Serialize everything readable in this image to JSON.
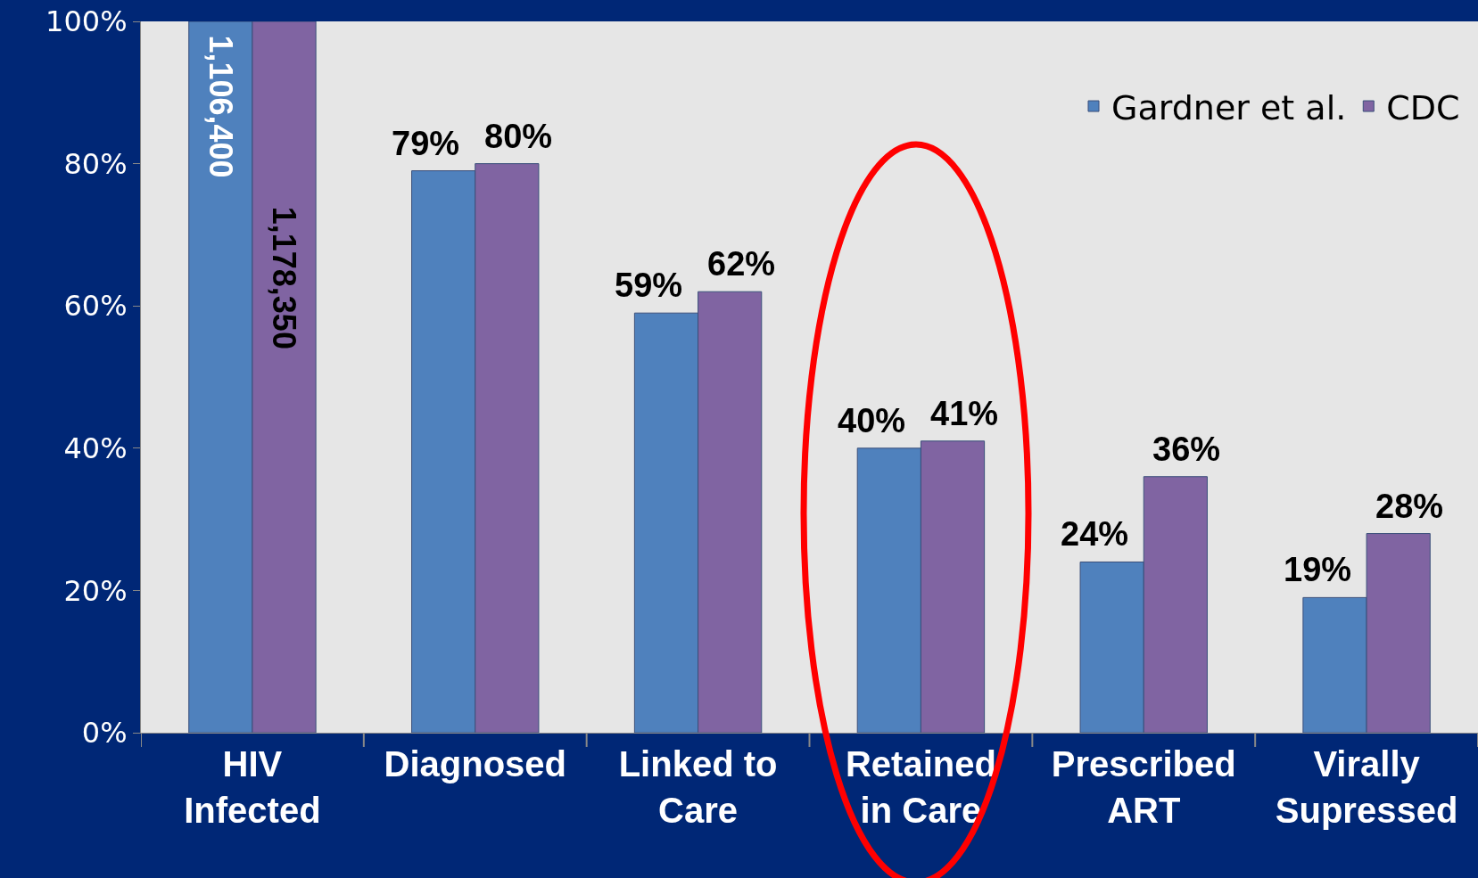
{
  "chart_data": {
    "type": "bar",
    "categories": [
      "HIV Infected",
      "Diagnosed",
      "Linked to Care",
      "Retained in Care",
      "Prescribed ART",
      "Virally Supressed"
    ],
    "series": [
      {
        "name": "Gardner et al.",
        "color": "#4f81bd",
        "values": [
          100,
          79,
          59,
          40,
          24,
          19
        ],
        "value_labels": [
          null,
          "79%",
          "59%",
          "40%",
          "24%",
          "19%"
        ]
      },
      {
        "name": "CDC",
        "color": "#8064a2",
        "values": [
          100,
          80,
          62,
          41,
          36,
          28
        ],
        "value_labels": [
          null,
          "80%",
          "62%",
          "41%",
          "36%",
          "28%"
        ]
      }
    ],
    "ylim": [
      0,
      100
    ],
    "yticks": [
      {
        "value": 0,
        "label": "0%"
      },
      {
        "value": 20,
        "label": "20%"
      },
      {
        "value": 40,
        "label": "40%"
      },
      {
        "value": 60,
        "label": "60%"
      },
      {
        "value": 80,
        "label": "80%"
      },
      {
        "value": 100,
        "label": "100%"
      }
    ],
    "grid": false,
    "legend": "top right",
    "annotations": [
      {
        "text": "1,106,400",
        "x": "HIV Infected",
        "y": 88
      },
      {
        "text": "1,178,350",
        "x": "HIV Infected",
        "y": 64
      }
    ]
  }
}
